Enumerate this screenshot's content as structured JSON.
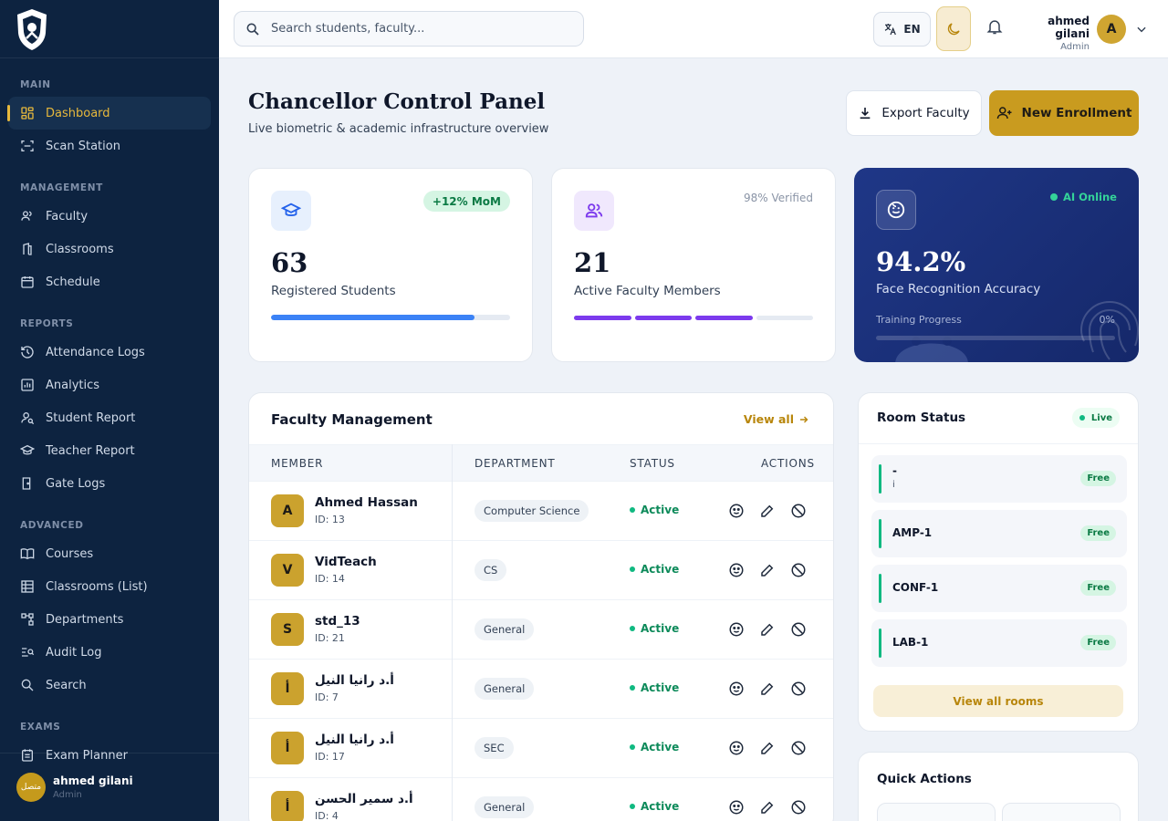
{
  "sidebar": {
    "sections": [
      {
        "title": "MAIN",
        "items": [
          "Dashboard",
          "Scan Station"
        ]
      },
      {
        "title": "MANAGEMENT",
        "items": [
          "Faculty",
          "Classrooms",
          "Schedule"
        ]
      },
      {
        "title": "REPORTS",
        "items": [
          "Attendance Logs",
          "Analytics",
          "Student Report",
          "Teacher Report",
          "Gate Logs"
        ]
      },
      {
        "title": "ADVANCED",
        "items": [
          "Courses",
          "Classrooms (List)",
          "Departments",
          "Audit Log",
          "Search"
        ]
      },
      {
        "title": "EXAMS",
        "items": [
          "Exam Planner"
        ]
      }
    ],
    "active_item": "Dashboard",
    "footer": {
      "status_label": "متصل",
      "user_name": "ahmed gilani",
      "user_role": "Admin"
    }
  },
  "topbar": {
    "search_placeholder": "Search students, faculty...",
    "language": "EN",
    "user_name": "ahmed gilani",
    "user_role": "Admin",
    "user_initial": "A"
  },
  "header": {
    "title": "Chancellor Control Panel",
    "subtitle": "Live biometric & academic infrastructure overview",
    "export_label": "Export Faculty",
    "new_label": "New Enrollment"
  },
  "stats": {
    "students": {
      "value": "63",
      "label": "Registered Students",
      "badge": "+12% MoM",
      "progress": 0.85
    },
    "faculty": {
      "value": "21",
      "label": "Active Faculty Members",
      "note": "98% Verified",
      "segments_total": 4,
      "segments_filled": 3
    },
    "ai": {
      "value": "94.2%",
      "label": "Face Recognition Accuracy",
      "status": "AI Online",
      "progress_label": "Training Progress",
      "progress_value": "0%"
    }
  },
  "faculty_table": {
    "title": "Faculty Management",
    "view_all": "View all",
    "columns": [
      "MEMBER",
      "DEPARTMENT",
      "STATUS",
      "ACTIONS"
    ],
    "rows": [
      {
        "initial": "A",
        "name": "Ahmed Hassan",
        "id": "ID: 13",
        "department": "Computer Science",
        "status": "Active"
      },
      {
        "initial": "V",
        "name": "VidTeach",
        "id": "ID: 14",
        "department": "CS",
        "status": "Active"
      },
      {
        "initial": "S",
        "name": "std_13",
        "id": "ID: 21",
        "department": "General",
        "status": "Active"
      },
      {
        "initial": "أ",
        "name": "أ.د رانيا النيل",
        "id": "ID: 7",
        "department": "General",
        "status": "Active"
      },
      {
        "initial": "أ",
        "name": "أ.د رانيا النيل",
        "id": "ID: 17",
        "department": "SEC",
        "status": "Active"
      },
      {
        "initial": "أ",
        "name": "أ.د سمير الحسن",
        "id": "ID: 4",
        "department": "General",
        "status": "Active"
      }
    ]
  },
  "rooms": {
    "title": "Room Status",
    "live": "Live",
    "items": [
      {
        "name": "-",
        "sub": "i",
        "status": "Free"
      },
      {
        "name": "AMP-1",
        "sub": "",
        "status": "Free"
      },
      {
        "name": "CONF-1",
        "sub": "",
        "status": "Free"
      },
      {
        "name": "LAB-1",
        "sub": "",
        "status": "Free"
      }
    ],
    "view_all": "View all rooms"
  },
  "quick_actions": {
    "title": "Quick Actions"
  },
  "colors": {
    "sidebar": "#0d2340",
    "accent": "#c99b1f",
    "active": "#10b981",
    "ai_card": "#1f3787"
  }
}
